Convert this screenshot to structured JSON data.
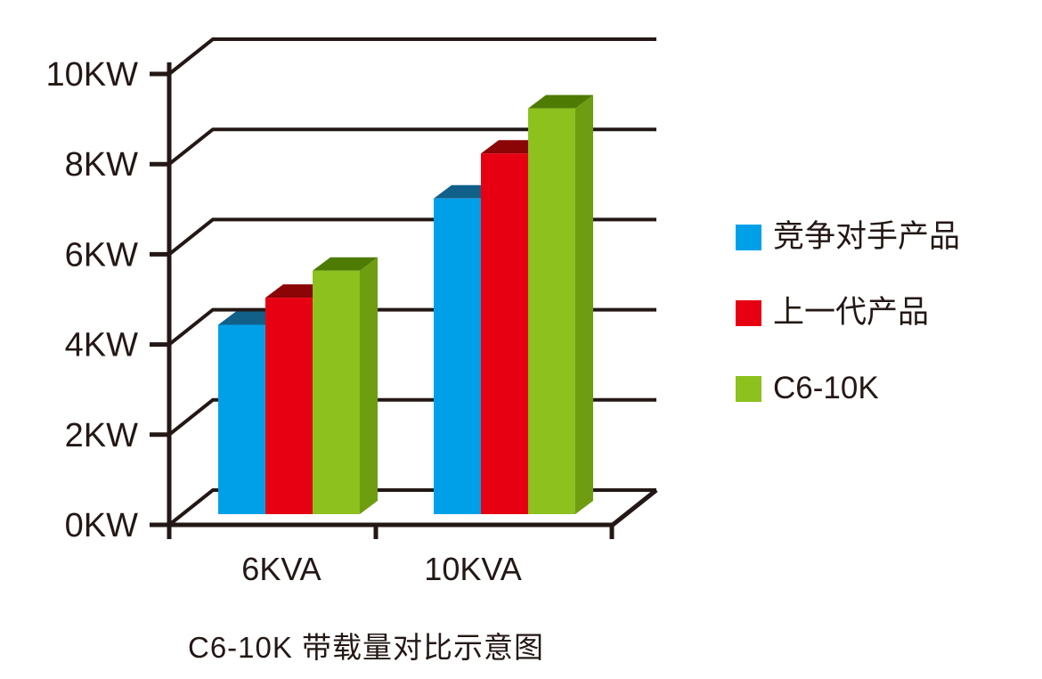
{
  "chart_data": {
    "type": "bar",
    "variant": "3d-column",
    "title": "C6-10K 带载量对比示意图",
    "categories": [
      "6KVA",
      "10KVA"
    ],
    "series": [
      {
        "key": "competitor-product",
        "name": "竞争对手产品",
        "color": "#00A0E8",
        "top_color": "#10608A",
        "side_color": "#0C7BB0",
        "values": [
          4.2,
          7.0
        ]
      },
      {
        "key": "previous-generation-product",
        "name": "上一代产品",
        "color": "#E60012",
        "top_color": "#8B0406",
        "side_color": "#B8000E",
        "values": [
          4.8,
          8.0
        ]
      },
      {
        "key": "c6-10k",
        "name": "C6-10K",
        "color": "#8CC11E",
        "top_color": "#4D7B03",
        "side_color": "#6F9D12",
        "values": [
          5.4,
          9.0
        ]
      }
    ],
    "y_axis": {
      "min": 0,
      "max": 10,
      "step": 2,
      "unit": "KW",
      "tick_labels": [
        "0KW",
        "2KW",
        "4KW",
        "6KW",
        "8KW",
        "10KW"
      ]
    },
    "x_axis": {
      "tick_labels": [
        "6KVA",
        "10KVA"
      ]
    },
    "grid": true,
    "legend_position": "right",
    "line_color": "#231815",
    "background_color": "#FFFFFF"
  }
}
